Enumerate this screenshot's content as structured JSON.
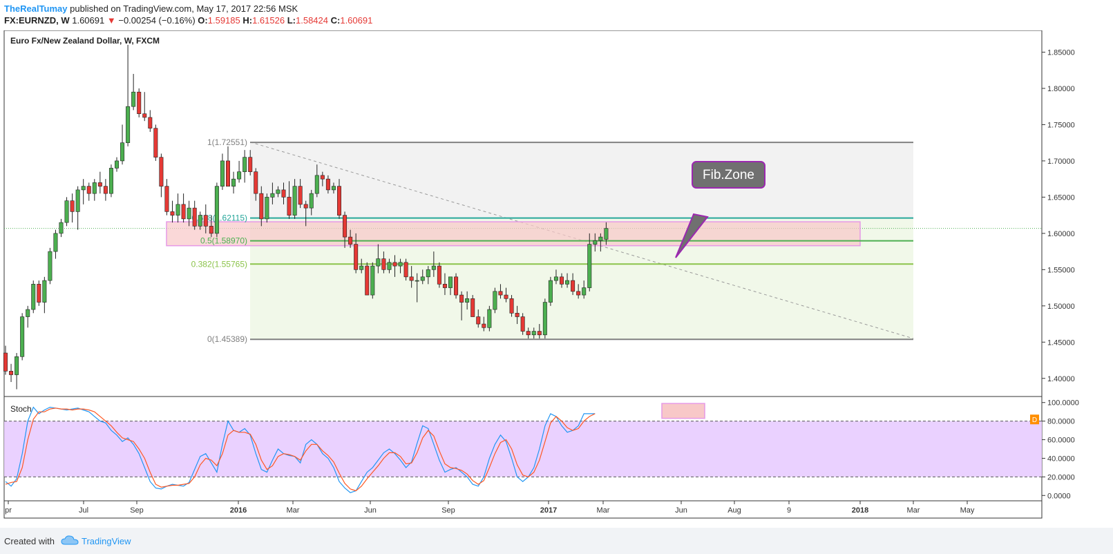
{
  "header": {
    "author": "TheRealTumay",
    "published_text": "published on TradingView.com, May 17, 2017 22:56 MSK",
    "symbol": "FX:EURNZD, W",
    "last": "1.60691",
    "change": "−0.00254 (−0.16%)",
    "o_label": "O:",
    "o_value": "1.59185",
    "h_label": "H:",
    "h_value": "1.61526",
    "l_label": "L:",
    "l_value": "1.58424",
    "c_label": "C:",
    "c_value": "1.60691"
  },
  "chart_data": [
    {
      "type": "candlestick",
      "title": "Euro Fx/New Zealand Dollar, W, FXCM",
      "y_ticks": [
        "1.85000",
        "1.80000",
        "1.75000",
        "1.70000",
        "1.65000",
        "1.60000",
        "1.55000",
        "1.50000",
        "1.45000",
        "1.40000"
      ],
      "ylim": [
        1.375,
        1.88
      ],
      "x_ticks": [
        "pr",
        "Jul",
        "Sep",
        "2016",
        "Mar",
        "Jun",
        "Sep",
        "2017",
        "Mar",
        "Jun",
        "Aug",
        "9",
        "2018",
        "Mar",
        "May"
      ],
      "current_price": 1.60691,
      "bars": [
        [
          1.435,
          1.445,
          1.405,
          1.41
        ],
        [
          1.41,
          1.42,
          1.395,
          1.405
        ],
        [
          1.405,
          1.435,
          1.385,
          1.43
        ],
        [
          1.43,
          1.49,
          1.425,
          1.485
        ],
        [
          1.485,
          1.5,
          1.47,
          1.495
        ],
        [
          1.495,
          1.535,
          1.49,
          1.53
        ],
        [
          1.53,
          1.535,
          1.5,
          1.505
        ],
        [
          1.505,
          1.54,
          1.49,
          1.535
        ],
        [
          1.535,
          1.58,
          1.53,
          1.575
        ],
        [
          1.575,
          1.605,
          1.565,
          1.6
        ],
        [
          1.6,
          1.62,
          1.595,
          1.615
        ],
        [
          1.615,
          1.65,
          1.61,
          1.645
        ],
        [
          1.645,
          1.655,
          1.615,
          1.63
        ],
        [
          1.63,
          1.665,
          1.605,
          1.66
        ],
        [
          1.66,
          1.675,
          1.64,
          1.665
        ],
        [
          1.665,
          1.67,
          1.645,
          1.655
        ],
        [
          1.655,
          1.675,
          1.645,
          1.67
        ],
        [
          1.67,
          1.685,
          1.655,
          1.665
        ],
        [
          1.665,
          1.675,
          1.645,
          1.655
        ],
        [
          1.655,
          1.695,
          1.65,
          1.69
        ],
        [
          1.69,
          1.705,
          1.685,
          1.7
        ],
        [
          1.7,
          1.75,
          1.695,
          1.725
        ],
        [
          1.725,
          1.86,
          1.72,
          1.775
        ],
        [
          1.775,
          1.82,
          1.77,
          1.795
        ],
        [
          1.795,
          1.8,
          1.76,
          1.765
        ],
        [
          1.765,
          1.795,
          1.755,
          1.76
        ],
        [
          1.76,
          1.77,
          1.74,
          1.745
        ],
        [
          1.745,
          1.75,
          1.7,
          1.705
        ],
        [
          1.705,
          1.71,
          1.65,
          1.665
        ],
        [
          1.665,
          1.675,
          1.625,
          1.63
        ],
        [
          1.63,
          1.645,
          1.615,
          1.625
        ],
        [
          1.625,
          1.655,
          1.615,
          1.64
        ],
        [
          1.64,
          1.655,
          1.615,
          1.62
        ],
        [
          1.62,
          1.645,
          1.61,
          1.635
        ],
        [
          1.635,
          1.645,
          1.605,
          1.61
        ],
        [
          1.61,
          1.63,
          1.605,
          1.625
        ],
        [
          1.625,
          1.64,
          1.6,
          1.61
        ],
        [
          1.61,
          1.625,
          1.595,
          1.6
        ],
        [
          1.6,
          1.67,
          1.595,
          1.665
        ],
        [
          1.665,
          1.71,
          1.66,
          1.7
        ],
        [
          1.7,
          1.72,
          1.665,
          1.665
        ],
        [
          1.665,
          1.685,
          1.655,
          1.675
        ],
        [
          1.675,
          1.7,
          1.67,
          1.685
        ],
        [
          1.685,
          1.715,
          1.67,
          1.705
        ],
        [
          1.705,
          1.715,
          1.68,
          1.685
        ],
        [
          1.685,
          1.69,
          1.645,
          1.655
        ],
        [
          1.655,
          1.665,
          1.61,
          1.62
        ],
        [
          1.62,
          1.655,
          1.615,
          1.65
        ],
        [
          1.65,
          1.67,
          1.64,
          1.655
        ],
        [
          1.655,
          1.665,
          1.65,
          1.66
        ],
        [
          1.66,
          1.67,
          1.64,
          1.65
        ],
        [
          1.65,
          1.672,
          1.62,
          1.625
        ],
        [
          1.625,
          1.675,
          1.62,
          1.665
        ],
        [
          1.665,
          1.675,
          1.635,
          1.64
        ],
        [
          1.64,
          1.645,
          1.61,
          1.635
        ],
        [
          1.635,
          1.66,
          1.625,
          1.655
        ],
        [
          1.655,
          1.695,
          1.65,
          1.68
        ],
        [
          1.68,
          1.685,
          1.665,
          1.675
        ],
        [
          1.675,
          1.68,
          1.655,
          1.66
        ],
        [
          1.66,
          1.67,
          1.655,
          1.665
        ],
        [
          1.665,
          1.675,
          1.62,
          1.625
        ],
        [
          1.625,
          1.63,
          1.58,
          1.595
        ],
        [
          1.595,
          1.605,
          1.58,
          1.585
        ],
        [
          1.585,
          1.6,
          1.545,
          1.55
        ],
        [
          1.55,
          1.565,
          1.545,
          1.555
        ],
        [
          1.555,
          1.56,
          1.515,
          1.515
        ],
        [
          1.515,
          1.56,
          1.51,
          1.555
        ],
        [
          1.555,
          1.585,
          1.545,
          1.565
        ],
        [
          1.565,
          1.575,
          1.545,
          1.55
        ],
        [
          1.55,
          1.565,
          1.545,
          1.56
        ],
        [
          1.56,
          1.57,
          1.54,
          1.555
        ],
        [
          1.555,
          1.565,
          1.545,
          1.56
        ],
        [
          1.56,
          1.565,
          1.535,
          1.54
        ],
        [
          1.54,
          1.555,
          1.525,
          1.535
        ],
        [
          1.535,
          1.545,
          1.505,
          1.535
        ],
        [
          1.535,
          1.55,
          1.53,
          1.54
        ],
        [
          1.54,
          1.555,
          1.53,
          1.55
        ],
        [
          1.55,
          1.575,
          1.54,
          1.555
        ],
        [
          1.555,
          1.56,
          1.525,
          1.53
        ],
        [
          1.53,
          1.545,
          1.515,
          1.525
        ],
        [
          1.525,
          1.54,
          1.515,
          1.54
        ],
        [
          1.54,
          1.545,
          1.51,
          1.515
        ],
        [
          1.515,
          1.52,
          1.48,
          1.505
        ],
        [
          1.505,
          1.52,
          1.495,
          1.51
        ],
        [
          1.51,
          1.515,
          1.485,
          1.485
        ],
        [
          1.485,
          1.495,
          1.47,
          1.475
        ],
        [
          1.475,
          1.485,
          1.465,
          1.47
        ],
        [
          1.47,
          1.5,
          1.465,
          1.495
        ],
        [
          1.495,
          1.525,
          1.49,
          1.52
        ],
        [
          1.52,
          1.53,
          1.51,
          1.515
        ],
        [
          1.515,
          1.525,
          1.505,
          1.51
        ],
        [
          1.51,
          1.515,
          1.485,
          1.49
        ],
        [
          1.49,
          1.5,
          1.475,
          1.485
        ],
        [
          1.485,
          1.49,
          1.46,
          1.465
        ],
        [
          1.465,
          1.47,
          1.455,
          1.46
        ],
        [
          1.46,
          1.47,
          1.455,
          1.465
        ],
        [
          1.465,
          1.475,
          1.455,
          1.46
        ],
        [
          1.46,
          1.51,
          1.455,
          1.505
        ],
        [
          1.505,
          1.54,
          1.5,
          1.535
        ],
        [
          1.535,
          1.55,
          1.53,
          1.54
        ],
        [
          1.54,
          1.545,
          1.525,
          1.53
        ],
        [
          1.53,
          1.545,
          1.525,
          1.535
        ],
        [
          1.535,
          1.545,
          1.515,
          1.52
        ],
        [
          1.52,
          1.53,
          1.51,
          1.515
        ],
        [
          1.515,
          1.535,
          1.51,
          1.525
        ],
        [
          1.525,
          1.6,
          1.52,
          1.585
        ],
        [
          1.585,
          1.6,
          1.575,
          1.59
        ],
        [
          1.59,
          1.6,
          1.575,
          1.595
        ],
        [
          1.59185,
          1.61526,
          1.58424,
          1.60691
        ]
      ],
      "annotations": {
        "fib_levels": [
          {
            "ratio": 1,
            "price": 1.72551,
            "label": "1(1.72551)"
          },
          {
            "ratio": 0.618,
            "price": 1.62115,
            "label": "0.618(1.62115)"
          },
          {
            "ratio": 0.5,
            "price": 1.5897,
            "label": "0.5(1.58970)"
          },
          {
            "ratio": 0.382,
            "price": 1.55765,
            "label": "0.382(1.55765)"
          },
          {
            "ratio": 0,
            "price": 1.45389,
            "label": "0(1.45389)"
          }
        ],
        "zone_price_range": [
          1.583,
          1.616
        ],
        "callout_text": "Fib.Zone"
      },
      "colors": {
        "up": "#4caf50",
        "down": "#e53935",
        "fib_1_0": "#808080",
        "fib_0618": "#26a69a",
        "fib_05": "#4caf50",
        "fib_0382": "#8bc34a",
        "callout": "#707070",
        "callout_border": "#9c27b0",
        "zone": "#f8c8c8"
      }
    },
    {
      "type": "line",
      "title": "Stoch",
      "y_ticks": [
        "100.0000",
        "80.0000",
        "60.0000",
        "40.0000",
        "20.0000",
        "0.0000"
      ],
      "ylim": [
        -5,
        105
      ],
      "bands": [
        20,
        80
      ],
      "series": [
        {
          "color": "#2196f3",
          "values": [
            15,
            10,
            18,
            45,
            80,
            95,
            88,
            92,
            95,
            94,
            93,
            92,
            93,
            94,
            92,
            90,
            85,
            80,
            78,
            70,
            65,
            58,
            62,
            55,
            45,
            30,
            15,
            8,
            7,
            10,
            12,
            11,
            10,
            14,
            28,
            42,
            45,
            35,
            25,
            55,
            80,
            70,
            68,
            72,
            65,
            45,
            28,
            25,
            38,
            50,
            45,
            43,
            42,
            35,
            55,
            60,
            55,
            45,
            40,
            30,
            15,
            8,
            3,
            5,
            15,
            25,
            30,
            38,
            46,
            50,
            45,
            38,
            30,
            36,
            56,
            75,
            72,
            55,
            38,
            25,
            28,
            30,
            25,
            20,
            12,
            10,
            20,
            40,
            55,
            65,
            58,
            40,
            20,
            15,
            20,
            30,
            50,
            75,
            88,
            85,
            75,
            68,
            70,
            75,
            88,
            88,
            88
          ]
        },
        {
          "color": "#ff5722",
          "values": [
            12,
            14,
            15,
            30,
            60,
            82,
            90,
            90,
            93,
            94,
            93,
            93,
            92,
            93,
            93,
            92,
            90,
            85,
            80,
            75,
            68,
            62,
            60,
            58,
            50,
            40,
            25,
            12,
            9,
            10,
            11,
            11,
            12,
            13,
            20,
            33,
            40,
            38,
            32,
            45,
            65,
            70,
            68,
            68,
            66,
            55,
            38,
            28,
            32,
            42,
            45,
            44,
            42,
            38,
            48,
            55,
            55,
            48,
            43,
            36,
            24,
            13,
            7,
            5,
            10,
            18,
            25,
            32,
            40,
            46,
            46,
            42,
            34,
            35,
            46,
            62,
            70,
            64,
            48,
            34,
            30,
            29,
            27,
            23,
            16,
            12,
            16,
            30,
            45,
            57,
            60,
            50,
            33,
            22,
            20,
            25,
            38,
            58,
            78,
            85,
            80,
            73,
            70,
            72,
            80,
            85,
            88
          ]
        }
      ]
    }
  ],
  "footer": {
    "created_with": "Created with",
    "brand": "TradingView"
  }
}
